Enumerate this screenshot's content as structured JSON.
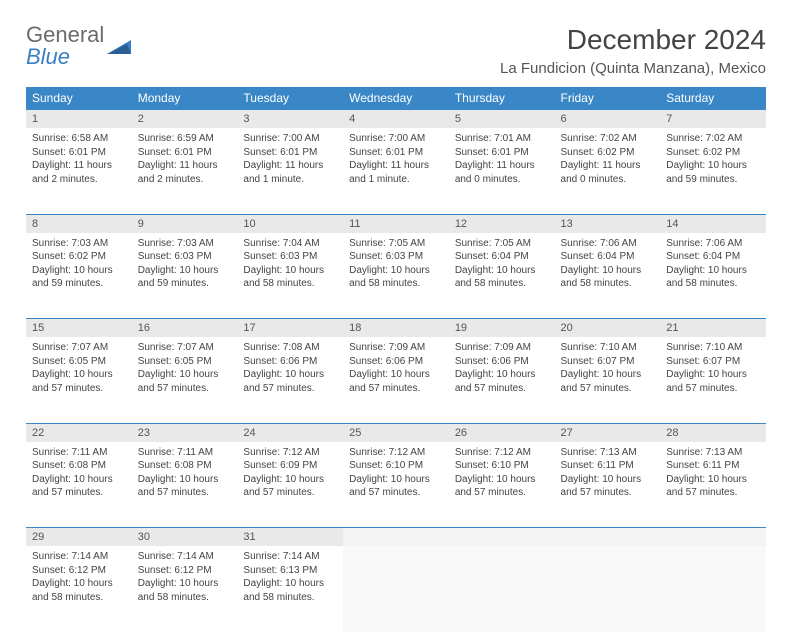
{
  "logo": {
    "word1": "General",
    "word2": "Blue"
  },
  "title": "December 2024",
  "location": "La Fundicion (Quinta Manzana), Mexico",
  "colors": {
    "header_bg": "#3a87c7",
    "header_text": "#ffffff",
    "daynum_bg": "#e9e9e9",
    "border": "#3a87c7",
    "logo_gray": "#6b6b6b",
    "logo_blue": "#3a7fc4"
  },
  "weekdays": [
    "Sunday",
    "Monday",
    "Tuesday",
    "Wednesday",
    "Thursday",
    "Friday",
    "Saturday"
  ],
  "weeks": [
    [
      {
        "n": "1",
        "sunrise": "Sunrise: 6:58 AM",
        "sunset": "Sunset: 6:01 PM",
        "daylight": "Daylight: 11 hours and 2 minutes."
      },
      {
        "n": "2",
        "sunrise": "Sunrise: 6:59 AM",
        "sunset": "Sunset: 6:01 PM",
        "daylight": "Daylight: 11 hours and 2 minutes."
      },
      {
        "n": "3",
        "sunrise": "Sunrise: 7:00 AM",
        "sunset": "Sunset: 6:01 PM",
        "daylight": "Daylight: 11 hours and 1 minute."
      },
      {
        "n": "4",
        "sunrise": "Sunrise: 7:00 AM",
        "sunset": "Sunset: 6:01 PM",
        "daylight": "Daylight: 11 hours and 1 minute."
      },
      {
        "n": "5",
        "sunrise": "Sunrise: 7:01 AM",
        "sunset": "Sunset: 6:01 PM",
        "daylight": "Daylight: 11 hours and 0 minutes."
      },
      {
        "n": "6",
        "sunrise": "Sunrise: 7:02 AM",
        "sunset": "Sunset: 6:02 PM",
        "daylight": "Daylight: 11 hours and 0 minutes."
      },
      {
        "n": "7",
        "sunrise": "Sunrise: 7:02 AM",
        "sunset": "Sunset: 6:02 PM",
        "daylight": "Daylight: 10 hours and 59 minutes."
      }
    ],
    [
      {
        "n": "8",
        "sunrise": "Sunrise: 7:03 AM",
        "sunset": "Sunset: 6:02 PM",
        "daylight": "Daylight: 10 hours and 59 minutes."
      },
      {
        "n": "9",
        "sunrise": "Sunrise: 7:03 AM",
        "sunset": "Sunset: 6:03 PM",
        "daylight": "Daylight: 10 hours and 59 minutes."
      },
      {
        "n": "10",
        "sunrise": "Sunrise: 7:04 AM",
        "sunset": "Sunset: 6:03 PM",
        "daylight": "Daylight: 10 hours and 58 minutes."
      },
      {
        "n": "11",
        "sunrise": "Sunrise: 7:05 AM",
        "sunset": "Sunset: 6:03 PM",
        "daylight": "Daylight: 10 hours and 58 minutes."
      },
      {
        "n": "12",
        "sunrise": "Sunrise: 7:05 AM",
        "sunset": "Sunset: 6:04 PM",
        "daylight": "Daylight: 10 hours and 58 minutes."
      },
      {
        "n": "13",
        "sunrise": "Sunrise: 7:06 AM",
        "sunset": "Sunset: 6:04 PM",
        "daylight": "Daylight: 10 hours and 58 minutes."
      },
      {
        "n": "14",
        "sunrise": "Sunrise: 7:06 AM",
        "sunset": "Sunset: 6:04 PM",
        "daylight": "Daylight: 10 hours and 58 minutes."
      }
    ],
    [
      {
        "n": "15",
        "sunrise": "Sunrise: 7:07 AM",
        "sunset": "Sunset: 6:05 PM",
        "daylight": "Daylight: 10 hours and 57 minutes."
      },
      {
        "n": "16",
        "sunrise": "Sunrise: 7:07 AM",
        "sunset": "Sunset: 6:05 PM",
        "daylight": "Daylight: 10 hours and 57 minutes."
      },
      {
        "n": "17",
        "sunrise": "Sunrise: 7:08 AM",
        "sunset": "Sunset: 6:06 PM",
        "daylight": "Daylight: 10 hours and 57 minutes."
      },
      {
        "n": "18",
        "sunrise": "Sunrise: 7:09 AM",
        "sunset": "Sunset: 6:06 PM",
        "daylight": "Daylight: 10 hours and 57 minutes."
      },
      {
        "n": "19",
        "sunrise": "Sunrise: 7:09 AM",
        "sunset": "Sunset: 6:06 PM",
        "daylight": "Daylight: 10 hours and 57 minutes."
      },
      {
        "n": "20",
        "sunrise": "Sunrise: 7:10 AM",
        "sunset": "Sunset: 6:07 PM",
        "daylight": "Daylight: 10 hours and 57 minutes."
      },
      {
        "n": "21",
        "sunrise": "Sunrise: 7:10 AM",
        "sunset": "Sunset: 6:07 PM",
        "daylight": "Daylight: 10 hours and 57 minutes."
      }
    ],
    [
      {
        "n": "22",
        "sunrise": "Sunrise: 7:11 AM",
        "sunset": "Sunset: 6:08 PM",
        "daylight": "Daylight: 10 hours and 57 minutes."
      },
      {
        "n": "23",
        "sunrise": "Sunrise: 7:11 AM",
        "sunset": "Sunset: 6:08 PM",
        "daylight": "Daylight: 10 hours and 57 minutes."
      },
      {
        "n": "24",
        "sunrise": "Sunrise: 7:12 AM",
        "sunset": "Sunset: 6:09 PM",
        "daylight": "Daylight: 10 hours and 57 minutes."
      },
      {
        "n": "25",
        "sunrise": "Sunrise: 7:12 AM",
        "sunset": "Sunset: 6:10 PM",
        "daylight": "Daylight: 10 hours and 57 minutes."
      },
      {
        "n": "26",
        "sunrise": "Sunrise: 7:12 AM",
        "sunset": "Sunset: 6:10 PM",
        "daylight": "Daylight: 10 hours and 57 minutes."
      },
      {
        "n": "27",
        "sunrise": "Sunrise: 7:13 AM",
        "sunset": "Sunset: 6:11 PM",
        "daylight": "Daylight: 10 hours and 57 minutes."
      },
      {
        "n": "28",
        "sunrise": "Sunrise: 7:13 AM",
        "sunset": "Sunset: 6:11 PM",
        "daylight": "Daylight: 10 hours and 57 minutes."
      }
    ],
    [
      {
        "n": "29",
        "sunrise": "Sunrise: 7:14 AM",
        "sunset": "Sunset: 6:12 PM",
        "daylight": "Daylight: 10 hours and 58 minutes."
      },
      {
        "n": "30",
        "sunrise": "Sunrise: 7:14 AM",
        "sunset": "Sunset: 6:12 PM",
        "daylight": "Daylight: 10 hours and 58 minutes."
      },
      {
        "n": "31",
        "sunrise": "Sunrise: 7:14 AM",
        "sunset": "Sunset: 6:13 PM",
        "daylight": "Daylight: 10 hours and 58 minutes."
      },
      null,
      null,
      null,
      null
    ]
  ]
}
